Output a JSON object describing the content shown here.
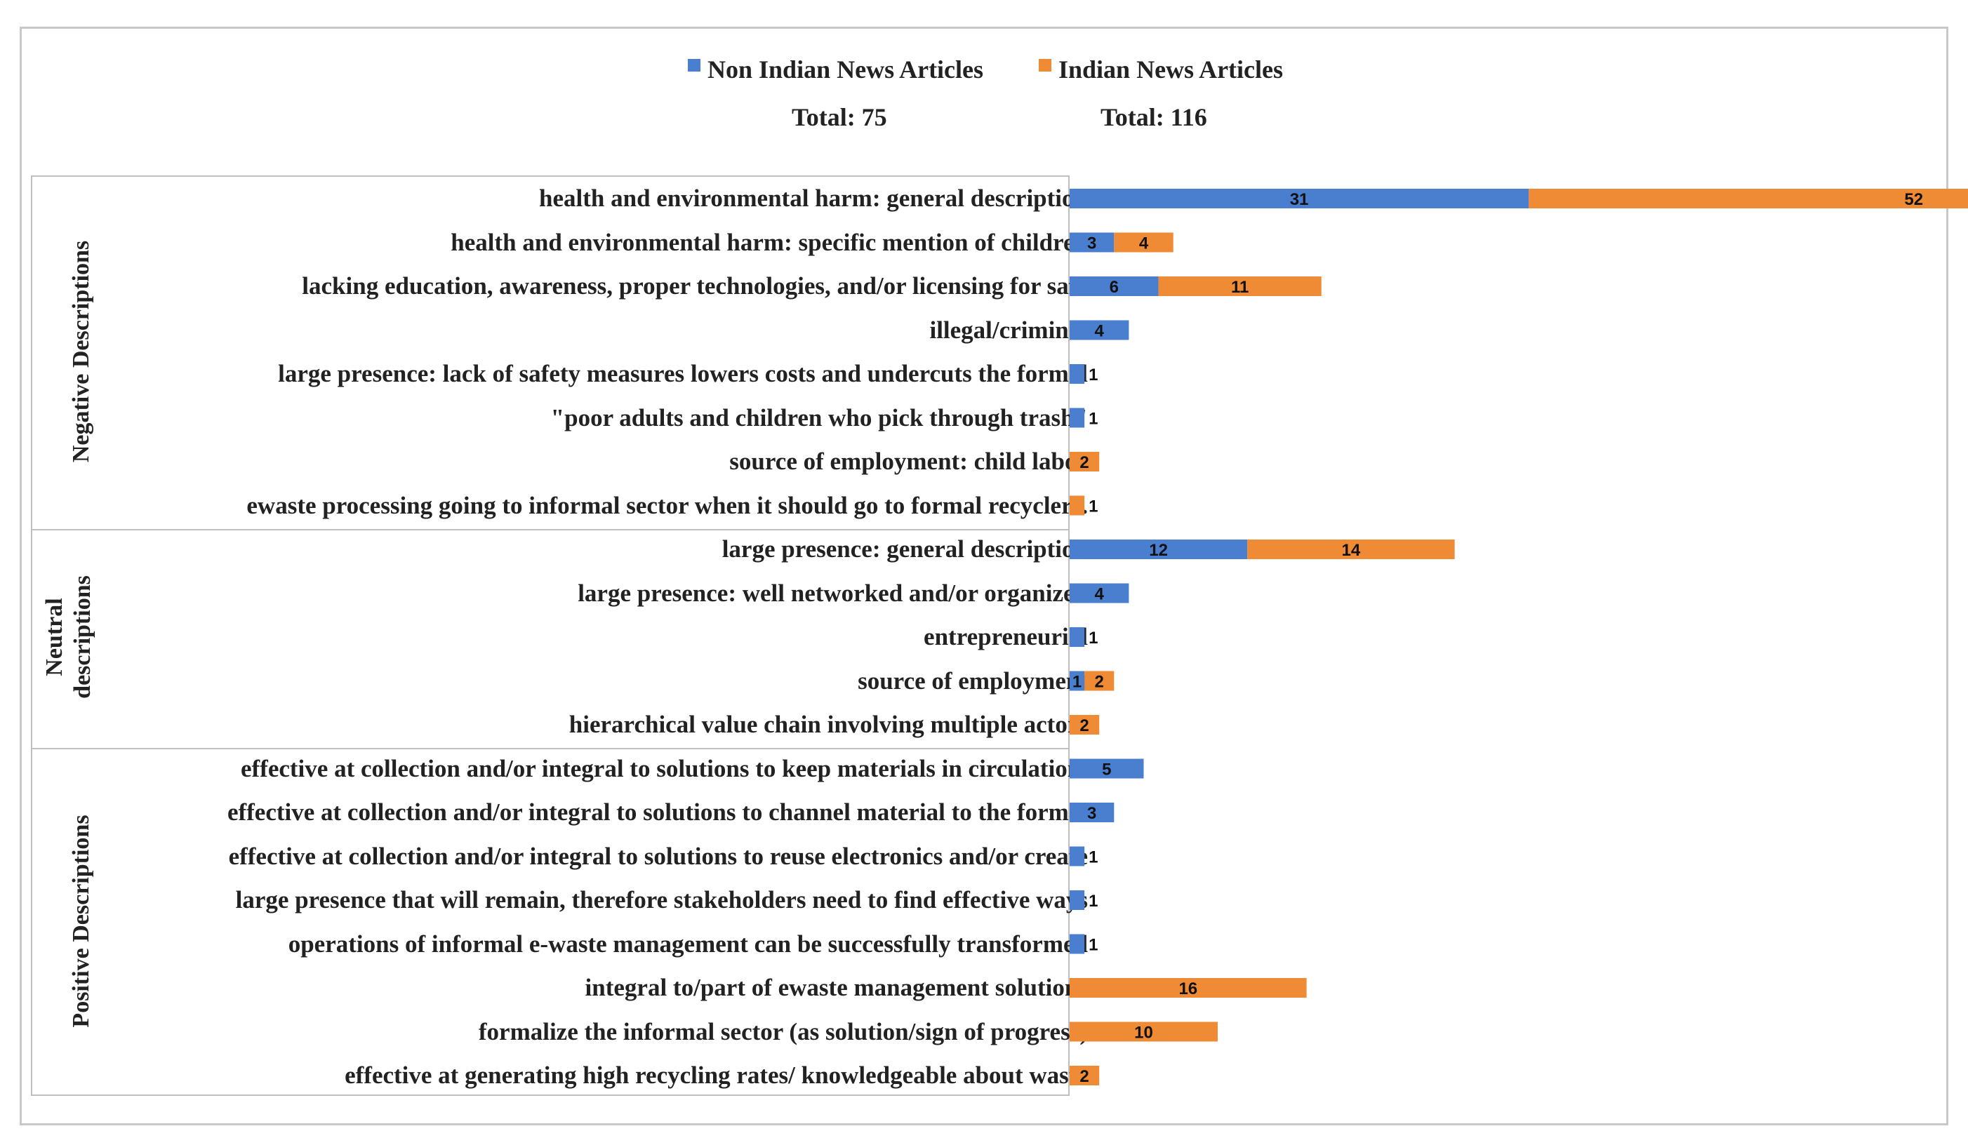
{
  "chart_data": {
    "type": "bar",
    "orientation": "horizontal",
    "stacked": true,
    "legend": [
      {
        "name": "Non Indian News Articles",
        "total_label": "Total: 75",
        "color": "#4a7fd0"
      },
      {
        "name": "Indian News Articles",
        "total_label": "Total: 116",
        "color": "#ef8a35"
      }
    ],
    "groups": [
      {
        "name": "Negative Descriptions",
        "start": 0,
        "count": 8
      },
      {
        "name": "Neutral descriptions",
        "start": 8,
        "count": 5
      },
      {
        "name": "Positive Descriptions",
        "start": 13,
        "count": 8
      }
    ],
    "categories": [
      "health and environmental harm: general description",
      "health and environmental harm: specific mention of children",
      "lacking education, awareness, proper technologies, and/or licensing for safe",
      "illegal/criminal",
      "large presence: lack of safety measures lowers costs and undercuts the formal",
      "\"poor adults and children who pick through trash\"",
      "source of employment: child labor",
      "ewaste processing going to informal sector when it should go to formal recyclers.",
      "large presence: general description",
      "large presence: well networked and/or organized",
      "entrepreneurial",
      "source of employment",
      "hierarchical value chain involving multiple actors",
      "effective at collection and/or integral to solutions to keep materials in circulation/",
      "effective at collection and/or integral to solutions to channel material to the formal",
      "effective at collection and/or integral to solutions to reuse electronics and/or create",
      "large presence that will remain, therefore stakeholders need to find effective ways",
      "operations of informal e-waste management can be successfully transformed",
      "integral to/part of ewaste management solutions",
      "formalize the informal sector (as solution/sign of progress)",
      "effective at generating high recycling rates/ knowledgeable about waste"
    ],
    "series": [
      {
        "name": "Non Indian News Articles",
        "values": [
          31,
          3,
          6,
          4,
          1,
          1,
          0,
          0,
          12,
          4,
          1,
          1,
          0,
          5,
          3,
          1,
          1,
          1,
          0,
          0,
          0
        ]
      },
      {
        "name": "Indian News Articles",
        "values": [
          52,
          4,
          11,
          0,
          0,
          0,
          2,
          1,
          14,
          0,
          0,
          2,
          2,
          0,
          0,
          0,
          0,
          0,
          16,
          10,
          2
        ]
      }
    ]
  }
}
